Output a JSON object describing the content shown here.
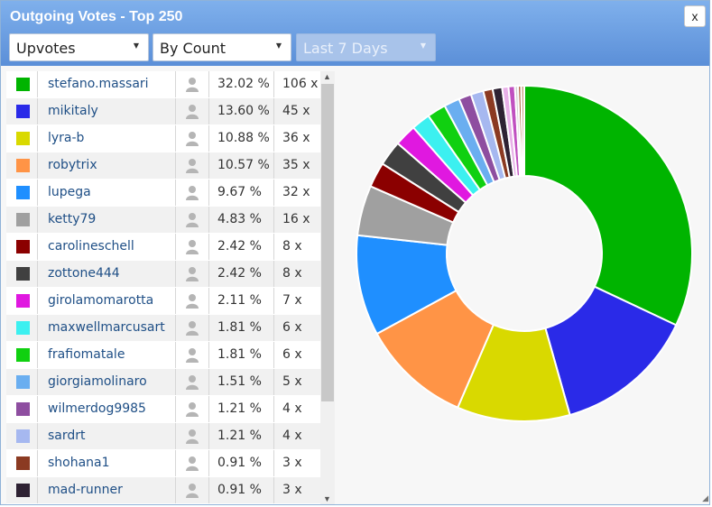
{
  "window": {
    "title": "Outgoing Votes - Top 250",
    "close_label": "x"
  },
  "filters": {
    "type": {
      "selected": "Upvotes"
    },
    "sort": {
      "selected": "By Count"
    },
    "period": {
      "selected": "Last 7 Days"
    }
  },
  "rows": [
    {
      "name": "stefano.massari",
      "color": "#00b400",
      "pct": "32.02 %",
      "count": "106 x"
    },
    {
      "name": "mikitaly",
      "color": "#2a2ae8",
      "pct": "13.60 %",
      "count": "45 x"
    },
    {
      "name": "lyra-b",
      "color": "#d9d900",
      "pct": "10.88 %",
      "count": "36 x"
    },
    {
      "name": "robytrix",
      "color": "#ff9446",
      "pct": "10.57 %",
      "count": "35 x"
    },
    {
      "name": "lupega",
      "color": "#1f8fff",
      "pct": "9.67 %",
      "count": "32 x"
    },
    {
      "name": "ketty79",
      "color": "#a0a0a0",
      "pct": "4.83 %",
      "count": "16 x"
    },
    {
      "name": "carolineschell",
      "color": "#8b0000",
      "pct": "2.42 %",
      "count": "8 x"
    },
    {
      "name": "zottone444",
      "color": "#404040",
      "pct": "2.42 %",
      "count": "8 x"
    },
    {
      "name": "girolamomarotta",
      "color": "#e018e0",
      "pct": "2.11 %",
      "count": "7 x"
    },
    {
      "name": "maxwellmarcusart",
      "color": "#3cf0f0",
      "pct": "1.81 %",
      "count": "6 x"
    },
    {
      "name": "frafiomatale",
      "color": "#10d010",
      "pct": "1.81 %",
      "count": "6 x"
    },
    {
      "name": "giorgiamolinaro",
      "color": "#6aaef0",
      "pct": "1.51 %",
      "count": "5 x"
    },
    {
      "name": "wilmerdog9985",
      "color": "#8e4ea0",
      "pct": "1.21 %",
      "count": "4 x"
    },
    {
      "name": "sardrt",
      "color": "#a6b8f0",
      "pct": "1.21 %",
      "count": "4 x"
    },
    {
      "name": "shohana1",
      "color": "#8b3a22",
      "pct": "0.91 %",
      "count": "3 x"
    },
    {
      "name": "mad-runner",
      "color": "#2e2233",
      "pct": "0.91 %",
      "count": "3 x"
    }
  ],
  "chart_data": {
    "type": "pie",
    "donut": true,
    "legend": "none",
    "labels": [
      "stefano.massari",
      "mikitaly",
      "lyra-b",
      "robytrix",
      "lupega",
      "ketty79",
      "carolineschell",
      "zottone444",
      "girolamomarotta",
      "maxwellmarcusart",
      "frafiomatale",
      "giorgiamolinaro",
      "wilmerdog9985",
      "sardrt",
      "shohana1",
      "mad-runner",
      "",
      "",
      "",
      "",
      ""
    ],
    "values": [
      32.02,
      13.6,
      10.88,
      10.57,
      9.67,
      4.83,
      2.42,
      2.42,
      2.11,
      1.81,
      1.81,
      1.51,
      1.21,
      1.21,
      0.91,
      0.91,
      0.61,
      0.61,
      0.3,
      0.3,
      0.3
    ],
    "colors": [
      "#00b400",
      "#2a2ae8",
      "#d9d900",
      "#ff9446",
      "#1f8fff",
      "#a0a0a0",
      "#8b0000",
      "#404040",
      "#e018e0",
      "#3cf0f0",
      "#10d010",
      "#6aaef0",
      "#8e4ea0",
      "#a6b8f0",
      "#8b3a22",
      "#2e2233",
      "#e8b0e8",
      "#c050c0",
      "#d0d0d0",
      "#b06040",
      "#c8a080"
    ]
  }
}
